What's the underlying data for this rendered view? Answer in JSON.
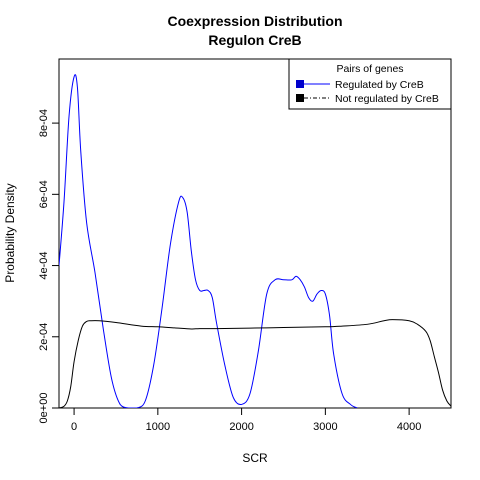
{
  "chart_data": {
    "type": "line",
    "title": "Coexpression Distribution",
    "subtitle": "Regulon CreB",
    "xlabel": "SCR",
    "ylabel": "Probability Density",
    "xlim": [
      -180,
      4500
    ],
    "ylim": [
      0,
      0.00098
    ],
    "x_ticks": [
      0,
      1000,
      2000,
      3000,
      4000
    ],
    "x_tick_labels": [
      "0",
      "1000",
      "2000",
      "3000",
      "4000"
    ],
    "y_ticks": [
      0,
      0.0002,
      0.0004,
      0.0006,
      0.0008
    ],
    "y_tick_labels": [
      "0e+00",
      "2e-04",
      "4e-04",
      "6e-04",
      "8e-04"
    ],
    "grid": false,
    "legend": {
      "title": "Pairs of genes",
      "position": "top-right",
      "entries": [
        "Regulated by  CreB",
        "Not regulated by  CreB"
      ]
    },
    "series": [
      {
        "name": "Regulated by  CreB",
        "color": "#0000ff",
        "x": [
          -180,
          -120,
          -60,
          0,
          40,
          80,
          150,
          250,
          350,
          450,
          550,
          650,
          750,
          850,
          950,
          1050,
          1150,
          1250,
          1300,
          1350,
          1400,
          1450,
          1500,
          1550,
          1600,
          1650,
          1700,
          1800,
          1900,
          2000,
          2100,
          2200,
          2300,
          2400,
          2500,
          2600,
          2650,
          2700,
          2750,
          2800,
          2850,
          2900,
          2950,
          3000,
          3050,
          3100,
          3200,
          3300,
          3380
        ],
        "y": [
          0.0004,
          0.00058,
          0.00082,
          0.00093,
          0.0009,
          0.00072,
          0.00052,
          0.00038,
          0.00022,
          8e-05,
          1e-05,
          0.0,
          0.0,
          2e-05,
          0.00012,
          0.00028,
          0.00046,
          0.00058,
          0.00059,
          0.00055,
          0.00044,
          0.00036,
          0.00033,
          0.00033,
          0.00033,
          0.00031,
          0.00024,
          0.00012,
          3e-05,
          1e-05,
          4e-05,
          0.00016,
          0.00032,
          0.00036,
          0.00036,
          0.00036,
          0.00037,
          0.00036,
          0.00034,
          0.00031,
          0.0003,
          0.00032,
          0.00033,
          0.00032,
          0.00026,
          0.00015,
          4e-05,
          1e-05,
          0.0
        ]
      },
      {
        "name": "Not regulated by  CreB",
        "color": "#000000",
        "x": [
          -180,
          -120,
          -80,
          -40,
          0,
          50,
          100,
          150,
          200,
          300,
          500,
          800,
          1000,
          1200,
          1400,
          1500,
          1700,
          2000,
          2300,
          2500,
          3000,
          3200,
          3500,
          3700,
          3800,
          4000,
          4100,
          4200,
          4250,
          4300,
          4350,
          4400,
          4450,
          4500
        ],
        "y": [
          0.0,
          5e-06,
          2e-05,
          6e-05,
          0.00013,
          0.00019,
          0.00023,
          0.000243,
          0.000245,
          0.000245,
          0.00024,
          0.00023,
          0.000228,
          0.000225,
          0.000222,
          0.000223,
          0.000223,
          0.000224,
          0.000225,
          0.000226,
          0.000228,
          0.00023,
          0.000235,
          0.000245,
          0.000248,
          0.000245,
          0.000235,
          0.000215,
          0.00019,
          0.000145,
          0.0001,
          5e-05,
          2e-05,
          5e-06
        ]
      }
    ]
  }
}
